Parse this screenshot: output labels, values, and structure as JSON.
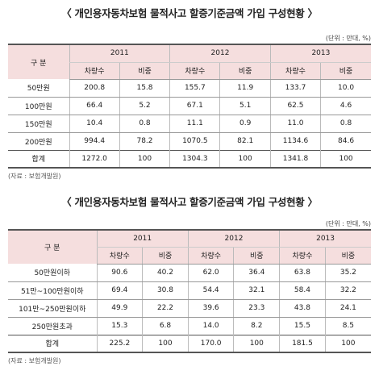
{
  "tables": [
    {
      "title": "〈 개인용자동차보험 물적사고 할증기준금액 가입 구성현황 〉",
      "unit": "(단위 : 만대, %)",
      "header_label": "구 분",
      "years": [
        "2011",
        "2012",
        "2013"
      ],
      "sub_headers": [
        "차량수",
        "비중"
      ],
      "rows": [
        {
          "label": "50만원",
          "cells": [
            "200.8",
            "15.8",
            "155.7",
            "11.9",
            "133.7",
            "10.0"
          ]
        },
        {
          "label": "100만원",
          "cells": [
            "66.4",
            "5.2",
            "67.1",
            "5.1",
            "62.5",
            "4.6"
          ]
        },
        {
          "label": "150만원",
          "cells": [
            "10.4",
            "0.8",
            "11.1",
            "0.9",
            "11.0",
            "0.8"
          ]
        },
        {
          "label": "200만원",
          "cells": [
            "994.4",
            "78.2",
            "1070.5",
            "82.1",
            "1134.6",
            "84.6"
          ]
        },
        {
          "label": "합계",
          "cells": [
            "1272.0",
            "100",
            "1304.3",
            "100",
            "1341.8",
            "100"
          ]
        }
      ],
      "source": "(자료 : 보험개발원)"
    },
    {
      "title": "〈 개인용자동차보험 물적사고 할증기준금액 가입 구성현황 〉",
      "unit": "(단위 : 만대, %)",
      "header_label": "구 분",
      "years": [
        "2011",
        "2012",
        "2013"
      ],
      "sub_headers": [
        "차량수",
        "비중"
      ],
      "rows": [
        {
          "label": "50만원이하",
          "cells": [
            "90.6",
            "40.2",
            "62.0",
            "36.4",
            "63.8",
            "35.2"
          ]
        },
        {
          "label": "51만~100만원이하",
          "cells": [
            "69.4",
            "30.8",
            "54.4",
            "32.1",
            "58.4",
            "32.2"
          ]
        },
        {
          "label": "101만~250만원이하",
          "cells": [
            "49.9",
            "22.2",
            "39.6",
            "23.3",
            "43.8",
            "24.1"
          ]
        },
        {
          "label": "250만원초과",
          "cells": [
            "15.3",
            "6.8",
            "14.0",
            "8.2",
            "15.5",
            "8.5"
          ]
        },
        {
          "label": "합계",
          "cells": [
            "225.2",
            "100",
            "170.0",
            "100",
            "181.5",
            "100"
          ]
        }
      ],
      "source": "(자료 : 보험개발원)"
    }
  ]
}
